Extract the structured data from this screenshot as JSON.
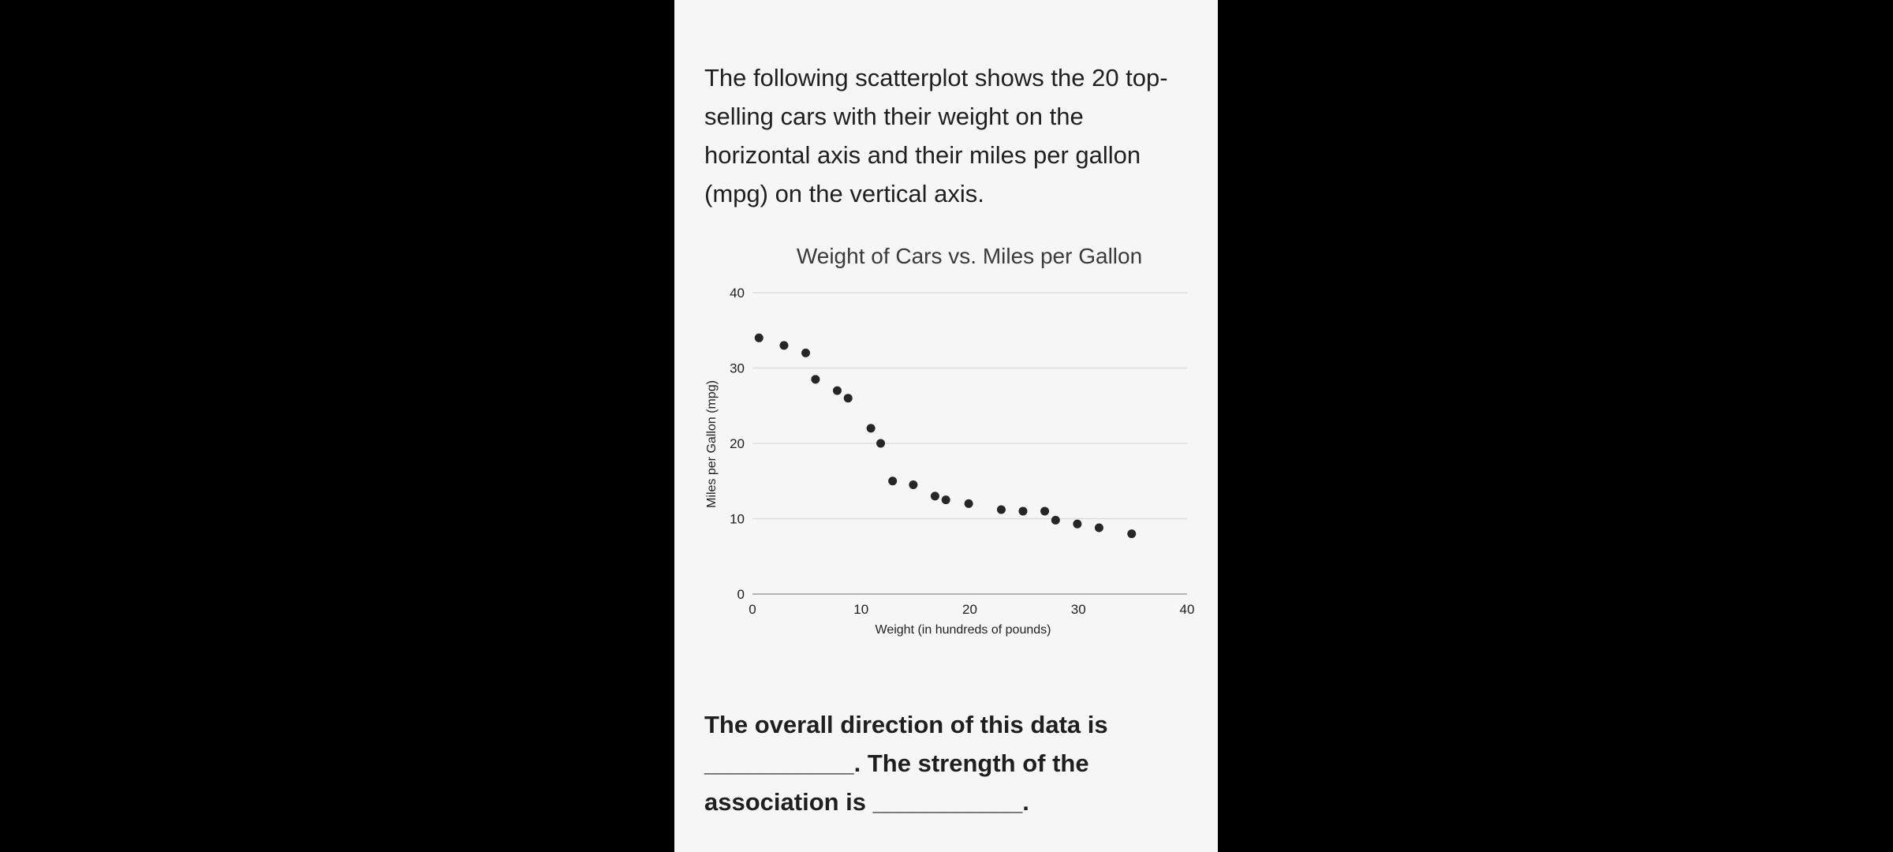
{
  "intro": {
    "text": "The following scatterplot shows the 20 top-selling cars with their weight on the horizontal axis and their miles per gallon (mpg) on the vertical axis."
  },
  "question": {
    "text": "The overall direction of this data is ___________. The strength of the association is ___________."
  },
  "colors": {
    "background": "#000000",
    "panel": "#f6f6f6",
    "point": "#262626",
    "grid": "#d9d9d9",
    "axis": "#9e9e9e",
    "text": "#1f1f1f"
  },
  "chart_data": {
    "type": "scatter",
    "title": "Weight of Cars vs. Miles per Gallon",
    "xlabel": "Weight (in hundreds of pounds)",
    "ylabel": "Miles per Gallon (mpg)",
    "xlim": [
      0,
      40
    ],
    "ylim": [
      0,
      40
    ],
    "xticks": [
      0,
      10,
      20,
      30,
      40
    ],
    "yticks": [
      0,
      10,
      20,
      30,
      40
    ],
    "grid": "horizontal",
    "points": [
      {
        "x": 0.6,
        "y": 34
      },
      {
        "x": 2.9,
        "y": 33
      },
      {
        "x": 4.9,
        "y": 32
      },
      {
        "x": 5.8,
        "y": 28.5
      },
      {
        "x": 7.8,
        "y": 27
      },
      {
        "x": 8.8,
        "y": 26
      },
      {
        "x": 10.9,
        "y": 22
      },
      {
        "x": 11.8,
        "y": 20
      },
      {
        "x": 12.9,
        "y": 15
      },
      {
        "x": 14.8,
        "y": 14.5
      },
      {
        "x": 16.8,
        "y": 13
      },
      {
        "x": 17.8,
        "y": 12.5
      },
      {
        "x": 19.9,
        "y": 12
      },
      {
        "x": 22.9,
        "y": 11.2
      },
      {
        "x": 24.9,
        "y": 11
      },
      {
        "x": 26.9,
        "y": 11
      },
      {
        "x": 27.9,
        "y": 9.8
      },
      {
        "x": 29.9,
        "y": 9.3
      },
      {
        "x": 31.9,
        "y": 8.8
      },
      {
        "x": 34.9,
        "y": 8
      }
    ]
  }
}
